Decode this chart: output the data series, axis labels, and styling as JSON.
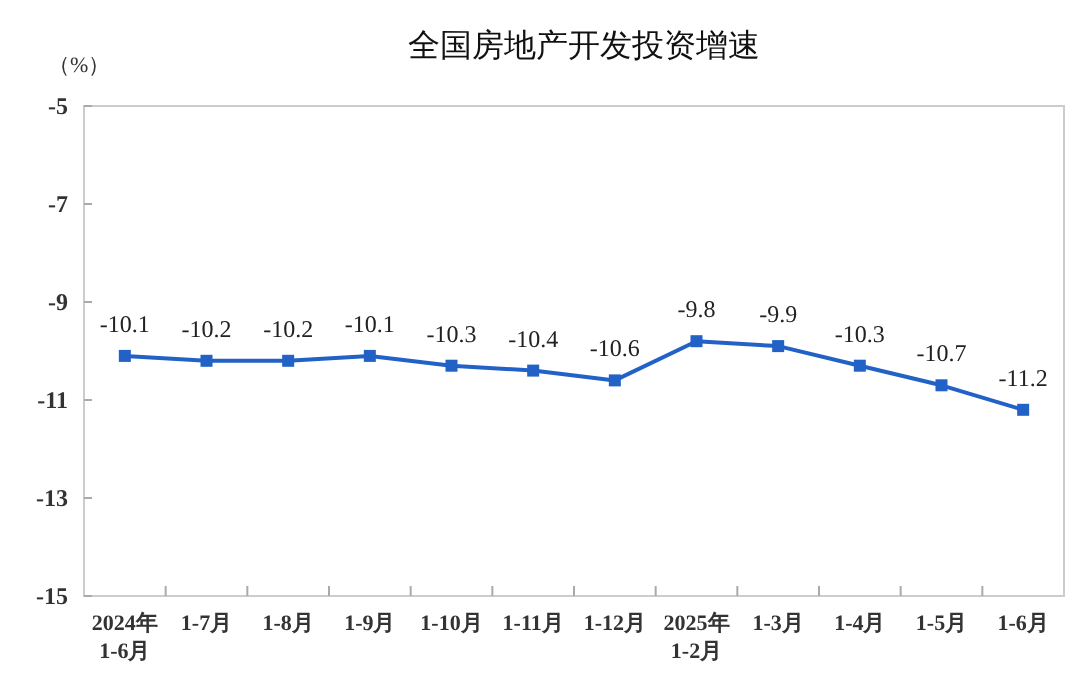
{
  "chart_data": {
    "type": "line",
    "title": "全国房地产开发投资增速",
    "ylabel": "（%）",
    "categories": [
      "2024年\n1-6月",
      "1-7月",
      "1-8月",
      "1-9月",
      "1-10月",
      "1-11月",
      "1-12月",
      "2025年\n1-2月",
      "1-3月",
      "1-4月",
      "1-5月",
      "1-6月"
    ],
    "series": [
      {
        "color": "#2262c6",
        "values": [
          -10.1,
          -10.2,
          -10.2,
          -10.1,
          -10.3,
          -10.4,
          -10.6,
          -9.8,
          -9.9,
          -10.3,
          -10.7,
          -11.2
        ]
      }
    ],
    "ylim": [
      -15,
      -5
    ],
    "yticks": [
      -15,
      -13,
      -11,
      -9,
      -7,
      -5
    ],
    "marker": "square",
    "line_style": "solid",
    "data_labels": true
  }
}
